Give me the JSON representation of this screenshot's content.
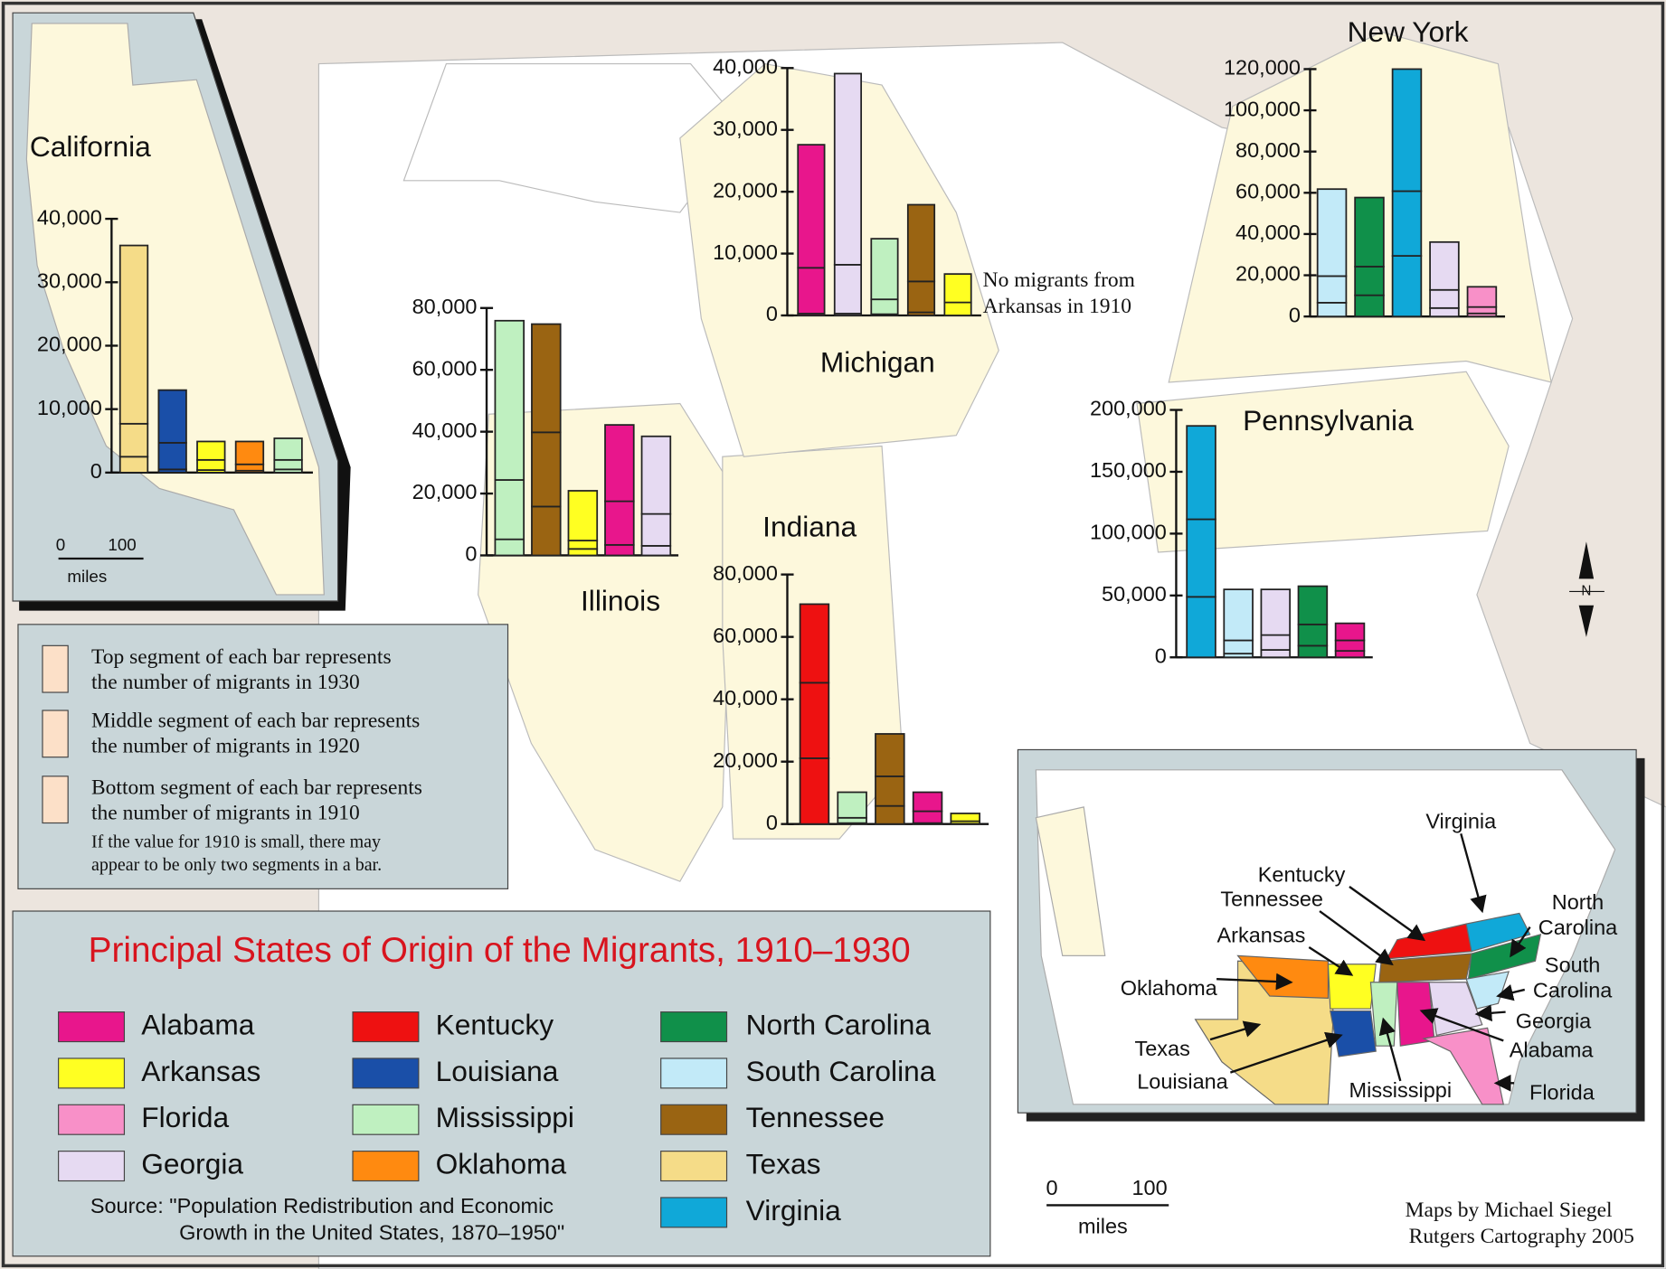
{
  "legend": {
    "title": "Principal States of Origin of the Migrants, 1910–1930",
    "items": [
      {
        "name": "Alabama",
        "color": "#e8168c"
      },
      {
        "name": "Arkansas",
        "color": "#ffff22"
      },
      {
        "name": "Florida",
        "color": "#f890c8"
      },
      {
        "name": "Georgia",
        "color": "#e6daf2"
      },
      {
        "name": "Kentucky",
        "color": "#ee1111"
      },
      {
        "name": "Louisiana",
        "color": "#1a4fa8"
      },
      {
        "name": "Mississippi",
        "color": "#bff0c0"
      },
      {
        "name": "Oklahoma",
        "color": "#ff8a10"
      },
      {
        "name": "North Carolina",
        "color": "#10904a"
      },
      {
        "name": "South Carolina",
        "color": "#c2eaf8"
      },
      {
        "name": "Tennessee",
        "color": "#9a6412"
      },
      {
        "name": "Texas",
        "color": "#f5dc88"
      },
      {
        "name": "Virginia",
        "color": "#10a8d8"
      }
    ],
    "source": [
      "Source: \"Population Redistribution and Economic",
      "Growth in the United States, 1870–1950\""
    ]
  },
  "key": {
    "segments": [
      [
        "Top segment of each bar represents",
        "the number of migrants in 1930"
      ],
      [
        "Middle segment of each bar represents",
        "the number of migrants in 1920"
      ],
      [
        "Bottom segment of each bar represents",
        "the number of migrants in 1910"
      ]
    ],
    "note": [
      "If the value for 1910 is small, there may",
      "appear to be only two segments in a bar."
    ]
  },
  "charts": [
    {
      "title": "California",
      "ylim": [
        0,
        40000
      ],
      "yticks": [
        0,
        {
          "value": 10000,
          "label": "10,000"
        },
        {
          "value": 20000,
          "label": "20,000"
        },
        {
          "value": 30000,
          "label": "30,000"
        },
        {
          "value": 40000,
          "label": "40,000"
        }
      ],
      "bars": [
        {
          "state": "Texas",
          "values": [
            2500,
            5200,
            28100
          ]
        },
        {
          "state": "Louisiana",
          "values": [
            500,
            4200,
            8300
          ]
        },
        {
          "state": "Arkansas",
          "values": [
            400,
            1600,
            2900
          ]
        },
        {
          "state": "Oklahoma",
          "values": [
            300,
            1000,
            3600
          ]
        },
        {
          "state": "Mississippi",
          "values": [
            500,
            1500,
            3400
          ]
        }
      ]
    },
    {
      "title": "Illinois",
      "ylim": [
        0,
        80000
      ],
      "yticks": [
        0,
        {
          "value": 20000,
          "label": "20,000"
        },
        {
          "value": 40000,
          "label": "40,000"
        },
        {
          "value": 60000,
          "label": "60,000"
        },
        {
          "value": 80000,
          "label": "80,000"
        }
      ],
      "bars": [
        {
          "state": "Mississippi",
          "values": [
            5200,
            19200,
            51500
          ]
        },
        {
          "state": "Tennessee",
          "values": [
            15800,
            24000,
            35000
          ]
        },
        {
          "state": "Arkansas",
          "values": [
            2100,
            2700,
            16100
          ]
        },
        {
          "state": "Alabama",
          "values": [
            3400,
            14100,
            24700
          ]
        },
        {
          "state": "Georgia",
          "values": [
            3100,
            10300,
            25100
          ]
        }
      ]
    },
    {
      "title": "Michigan",
      "ylim": [
        0,
        40000
      ],
      "yticks": [
        0,
        {
          "value": 10000,
          "label": "10,000"
        },
        {
          "value": 20000,
          "label": "20,000"
        },
        {
          "value": 30000,
          "label": "30,000"
        },
        {
          "value": 40000,
          "label": "40,000"
        }
      ],
      "annotation": [
        "No migrants from",
        "Arkansas in 1910"
      ],
      "bars": [
        {
          "state": "Alabama",
          "values": [
            300,
            7400,
            19900
          ]
        },
        {
          "state": "Georgia",
          "values": [
            300,
            7900,
            30900
          ]
        },
        {
          "state": "Mississippi",
          "values": [
            200,
            2400,
            9800
          ]
        },
        {
          "state": "Tennessee",
          "values": [
            500,
            5000,
            12400
          ]
        },
        {
          "state": "Arkansas",
          "values": [
            0,
            2100,
            4600
          ]
        }
      ]
    },
    {
      "title": "Indiana",
      "ylim": [
        0,
        80000
      ],
      "yticks": [
        0,
        {
          "value": 20000,
          "label": "20,000"
        },
        {
          "value": 40000,
          "label": "40,000"
        },
        {
          "value": 60000,
          "label": "60,000"
        },
        {
          "value": 80000,
          "label": "80,000"
        }
      ],
      "bars": [
        {
          "state": "Kentucky",
          "values": [
            21100,
            24200,
            25200
          ]
        },
        {
          "state": "Mississippi",
          "values": [
            300,
            1700,
            8200
          ]
        },
        {
          "state": "Tennessee",
          "values": [
            5800,
            9500,
            13600
          ]
        },
        {
          "state": "Alabama",
          "values": [
            300,
            3800,
            6100
          ]
        },
        {
          "state": "Arkansas",
          "values": [
            100,
            800,
            2500
          ]
        }
      ]
    },
    {
      "title": "New York",
      "ylim": [
        0,
        120000
      ],
      "yticks": [
        0,
        {
          "value": 20000,
          "label": "20,000"
        },
        {
          "value": 40000,
          "label": "40,000"
        },
        {
          "value": 60000,
          "label": "60,000"
        },
        {
          "value": 80000,
          "label": "80,000"
        },
        {
          "value": 100000,
          "label": "100,000"
        },
        {
          "value": 120000,
          "label": "120,000"
        }
      ],
      "bars": [
        {
          "state": "South Carolina",
          "values": [
            6700,
            12900,
            42200
          ]
        },
        {
          "state": "North Carolina",
          "values": [
            10300,
            13900,
            33500
          ]
        },
        {
          "state": "Virginia",
          "values": [
            29400,
            31400,
            59200
          ]
        },
        {
          "state": "Georgia",
          "values": [
            4100,
            8800,
            23200
          ]
        },
        {
          "state": "Florida",
          "values": [
            1500,
            3100,
            9800
          ]
        }
      ]
    },
    {
      "title": "Pennsylvania",
      "ylim": [
        0,
        200000
      ],
      "yticks": [
        0,
        {
          "value": 50000,
          "label": "50,000"
        },
        {
          "value": 100000,
          "label": "100,000"
        },
        {
          "value": 150000,
          "label": "150,000"
        },
        {
          "value": 200000,
          "label": "200,000"
        }
      ],
      "bars": [
        {
          "state": "Virginia",
          "values": [
            48900,
            62700,
            75500
          ]
        },
        {
          "state": "South Carolina",
          "values": [
            3000,
            10700,
            41200
          ]
        },
        {
          "state": "Georgia",
          "values": [
            6000,
            12000,
            36900
          ]
        },
        {
          "state": "North Carolina",
          "values": [
            9400,
            17200,
            30900
          ]
        },
        {
          "state": "Alabama",
          "values": [
            5200,
            8500,
            13800
          ]
        }
      ]
    }
  ],
  "inset_labels": [
    [
      "Virginia"
    ],
    [
      "Kentucky"
    ],
    [
      "Tennessee"
    ],
    [
      "Arkansas"
    ],
    [
      "Oklahoma"
    ],
    [
      "Texas"
    ],
    [
      "Louisiana"
    ],
    [
      "Mississippi"
    ],
    [
      "Florida"
    ],
    [
      "Alabama"
    ],
    [
      "Georgia"
    ],
    [
      "South",
      "Carolina"
    ],
    [
      "North",
      "Carolina"
    ]
  ],
  "scales": [
    {
      "ticks": [
        "0",
        "100"
      ],
      "unit": "miles"
    },
    {
      "ticks": [
        "0",
        "100"
      ],
      "unit": "miles"
    }
  ],
  "compass": "N",
  "credit": [
    "Maps by Michael Siegel",
    "Rutgers Cartography 2005"
  ]
}
